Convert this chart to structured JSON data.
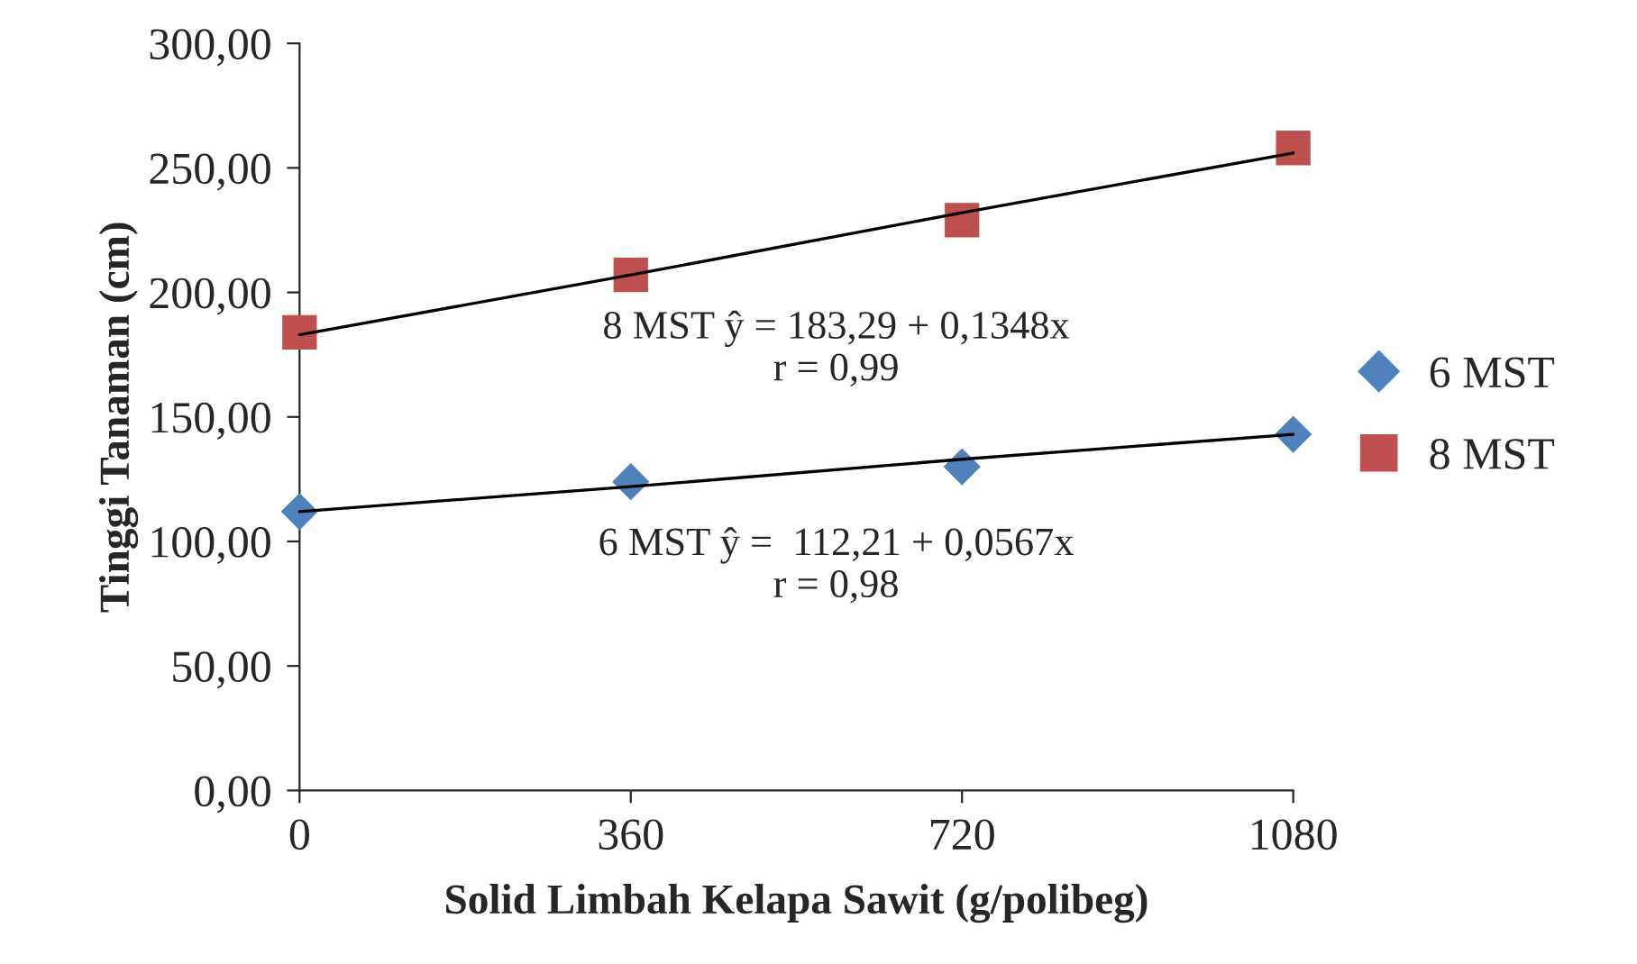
{
  "chart_data": {
    "type": "scatter",
    "xlabel": "Solid Limbah Kelapa Sawit (g/polibeg)",
    "ylabel": "Tinggi Tanaman (cm)",
    "x": [
      0,
      360,
      720,
      1080
    ],
    "series": [
      {
        "name": "6 MST",
        "color": "#4f81bd",
        "marker": "diamond",
        "values": [
          112,
          124,
          130,
          143
        ]
      },
      {
        "name": "8 MST",
        "color": "#c0504d",
        "marker": "square",
        "values": [
          184,
          207,
          229,
          258
        ]
      },
      {
        "type": "line",
        "color": "#000000",
        "values": [
          112,
          122,
          133,
          143
        ]
      },
      {
        "type": "line",
        "color": "#000000",
        "values": [
          183,
          207,
          232,
          256
        ]
      }
    ],
    "xlim": [
      0,
      1080
    ],
    "xticks": [
      0,
      360,
      720,
      1080
    ],
    "ylim": [
      0,
      300
    ],
    "yticks": [
      {
        "value": 0,
        "label": "0,00"
      },
      {
        "value": 50,
        "label": "50,00"
      },
      {
        "value": 100,
        "label": "100,00"
      },
      {
        "value": 150,
        "label": "150,00"
      },
      {
        "value": 200,
        "label": "200,00"
      },
      {
        "value": 250,
        "label": "250,00"
      },
      {
        "value": 300,
        "label": "300,00"
      }
    ],
    "annotations": [
      "8 MST ŷ = 183,29 + 0,1348x\nr = 0,99",
      "6 MST ŷ =  112,21 + 0,0567x\nr = 0,98"
    ],
    "grid": false,
    "legend": "right"
  }
}
